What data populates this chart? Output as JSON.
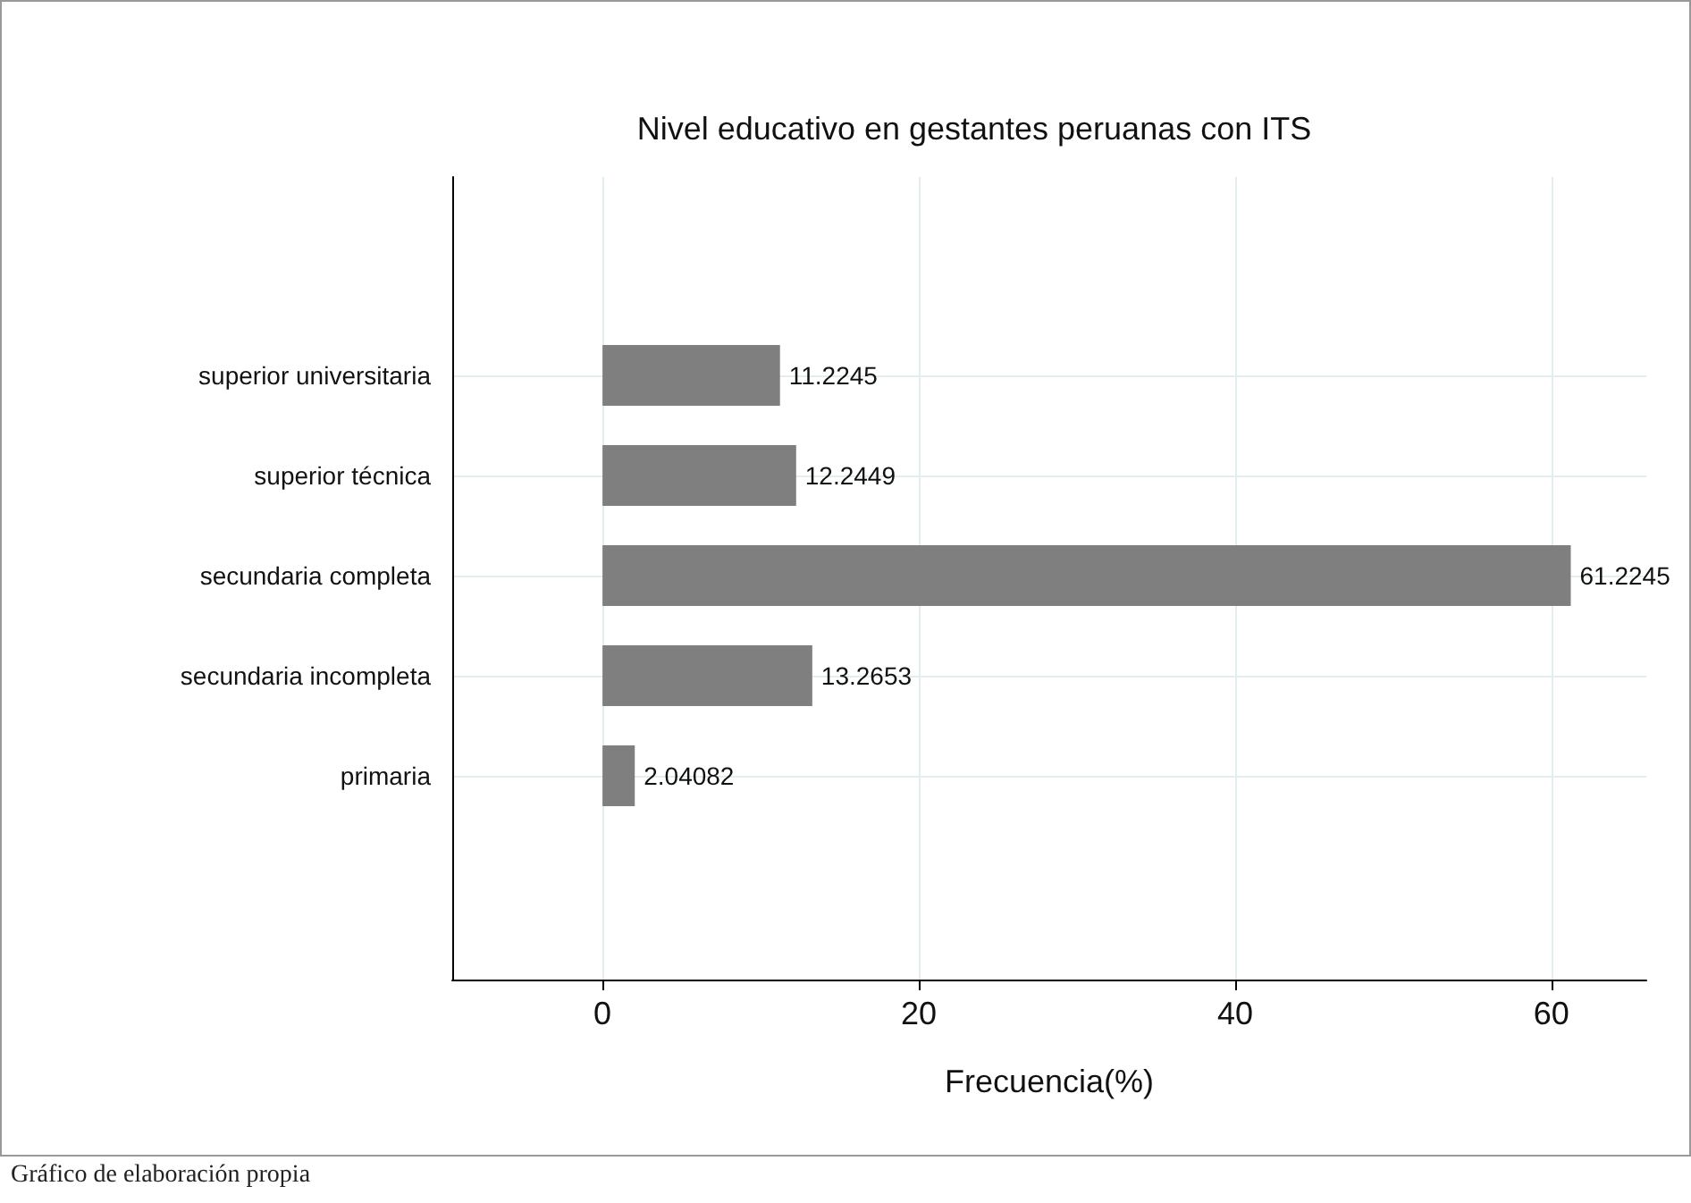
{
  "chart_data": {
    "type": "bar",
    "orientation": "horizontal",
    "title": "Nivel educativo en gestantes peruanas con ITS",
    "xlabel": "Frecuencia(%)",
    "categories": [
      "superior universitaria",
      "superior técnica",
      "secundaria completa",
      "secundaria incompleta",
      "primaria"
    ],
    "values": [
      11.2245,
      12.2449,
      61.2245,
      13.2653,
      2.04082
    ],
    "color": "#7f7f7f",
    "xlim": [
      -9.5,
      66
    ],
    "xticks": [
      0,
      20,
      40,
      60
    ],
    "grid": true,
    "data_labels": true,
    "annotations": [
      "Gráfico de elaboración propia"
    ]
  }
}
